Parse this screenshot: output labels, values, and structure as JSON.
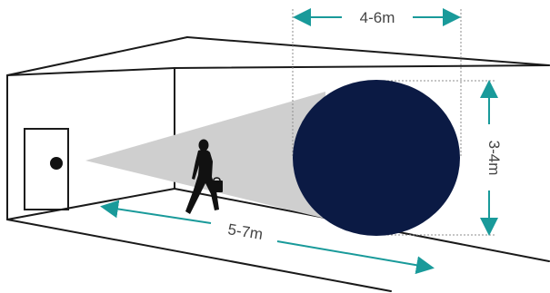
{
  "diagram": {
    "labels": {
      "width": "4-6m",
      "height": "3-4m",
      "distance": "5-7m"
    },
    "colors": {
      "line": "#1a1a1a",
      "beam": "#cfcfcf",
      "circle": "#0b1a44",
      "dimension": "#199a9a",
      "guide": "#8e8e8e",
      "door_knob": "#111111",
      "person": "#111111"
    }
  }
}
